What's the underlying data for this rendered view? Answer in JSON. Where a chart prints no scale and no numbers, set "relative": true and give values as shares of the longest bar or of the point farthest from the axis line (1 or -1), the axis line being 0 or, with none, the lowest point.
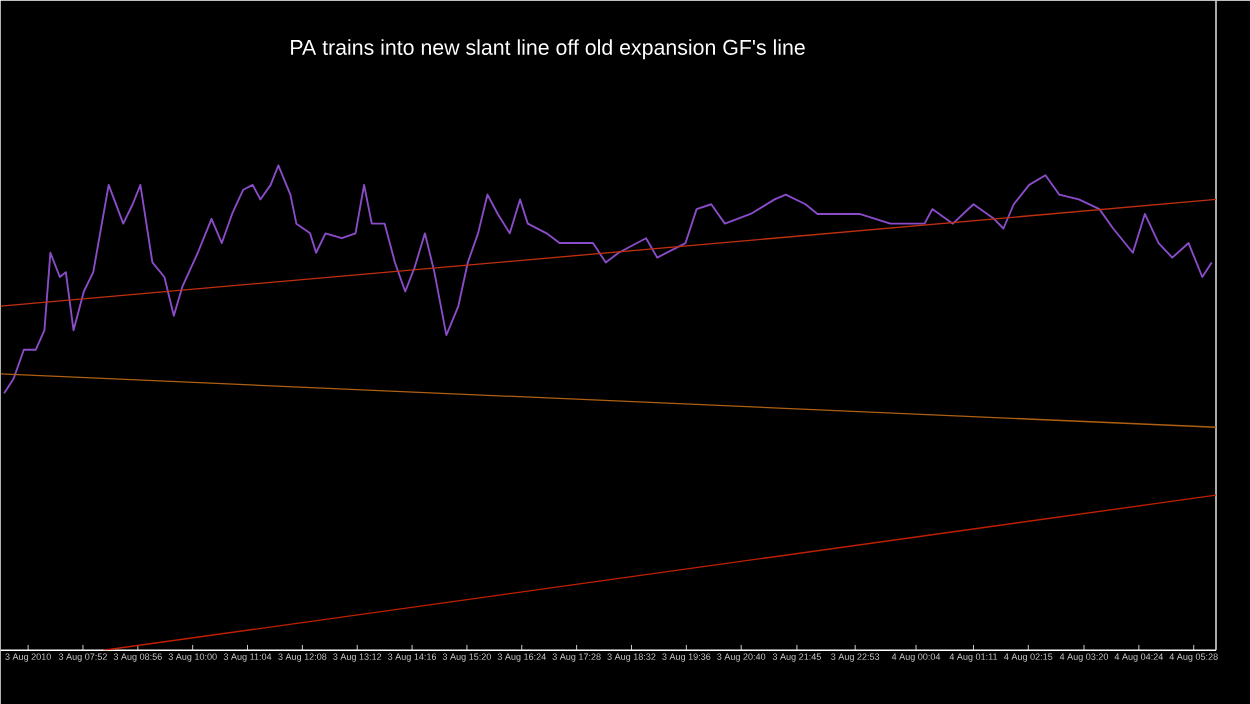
{
  "chart_data": {
    "type": "line",
    "title": "PA trains into new slant line off old expansion GF's line",
    "relative": true,
    "xlim": [
      "2010-08-03T06:16",
      "2010-08-04T05:54"
    ],
    "xticks": [
      {
        "value": "2010-08-03T06:48",
        "label": "3 Aug 2010"
      },
      {
        "value": "2010-08-03T07:52",
        "label": "3 Aug 07:52"
      },
      {
        "value": "2010-08-03T08:56",
        "label": "3 Aug 08:56"
      },
      {
        "value": "2010-08-03T10:00",
        "label": "3 Aug 10:00"
      },
      {
        "value": "2010-08-03T11:04",
        "label": "3 Aug 11:04"
      },
      {
        "value": "2010-08-03T12:08",
        "label": "3 Aug 12:08"
      },
      {
        "value": "2010-08-03T13:12",
        "label": "3 Aug 13:12"
      },
      {
        "value": "2010-08-03T14:16",
        "label": "3 Aug 14:16"
      },
      {
        "value": "2010-08-03T15:20",
        "label": "3 Aug 15:20"
      },
      {
        "value": "2010-08-03T16:24",
        "label": "3 Aug 16:24"
      },
      {
        "value": "2010-08-03T17:28",
        "label": "3 Aug 17:28"
      },
      {
        "value": "2010-08-03T18:32",
        "label": "3 Aug 18:32"
      },
      {
        "value": "2010-08-03T19:36",
        "label": "3 Aug 19:36"
      },
      {
        "value": "2010-08-03T20:40",
        "label": "3 Aug 20:40"
      },
      {
        "value": "2010-08-03T21:45",
        "label": "3 Aug 21:45"
      },
      {
        "value": "2010-08-03T22:53",
        "label": "3 Aug 22:53"
      },
      {
        "value": "2010-08-04T00:04",
        "label": "4 Aug 00:04"
      },
      {
        "value": "2010-08-04T01:11",
        "label": "4 Aug 01:11"
      },
      {
        "value": "2010-08-04T02:15",
        "label": "4 Aug 02:15"
      },
      {
        "value": "2010-08-04T03:20",
        "label": "4 Aug 03:20"
      },
      {
        "value": "2010-08-04T04:24",
        "label": "4 Aug 04:24"
      },
      {
        "value": "2010-08-04T05:28",
        "label": "4 Aug 05:28"
      }
    ],
    "series": [
      {
        "color": "#8a4cc8",
        "x": [
          "2010-08-03T06:20",
          "2010-08-03T06:31",
          "2010-08-03T06:43",
          "2010-08-03T06:57",
          "2010-08-03T07:07",
          "2010-08-03T07:14",
          "2010-08-03T07:25",
          "2010-08-03T07:32",
          "2010-08-03T07:41",
          "2010-08-03T07:53",
          "2010-08-03T08:04",
          "2010-08-03T08:22",
          "2010-08-03T08:39",
          "2010-08-03T08:50",
          "2010-08-03T08:59",
          "2010-08-03T09:13",
          "2010-08-03T09:27",
          "2010-08-03T09:38",
          "2010-08-03T09:48",
          "2010-08-03T10:06",
          "2010-08-03T10:22",
          "2010-08-03T10:34",
          "2010-08-03T10:46",
          "2010-08-03T10:59",
          "2010-08-03T11:10",
          "2010-08-03T11:19",
          "2010-08-03T11:31",
          "2010-08-03T11:40",
          "2010-08-03T11:54",
          "2010-08-03T12:01",
          "2010-08-03T12:17",
          "2010-08-03T12:24",
          "2010-08-03T12:35",
          "2010-08-03T12:54",
          "2010-08-03T13:10",
          "2010-08-03T13:20",
          "2010-08-03T13:29",
          "2010-08-03T13:44",
          "2010-08-03T13:56",
          "2010-08-03T14:08",
          "2010-08-03T14:19",
          "2010-08-03T14:31",
          "2010-08-03T14:42",
          "2010-08-03T14:56",
          "2010-08-03T15:10",
          "2010-08-03T15:21",
          "2010-08-03T15:33",
          "2010-08-03T15:44",
          "2010-08-03T15:56",
          "2010-08-03T16:10",
          "2010-08-03T16:22",
          "2010-08-03T16:31",
          "2010-08-03T16:53",
          "2010-08-03T17:08",
          "2010-08-03T17:31",
          "2010-08-03T17:47",
          "2010-08-03T18:02",
          "2010-08-03T18:17",
          "2010-08-03T18:49",
          "2010-08-03T19:02",
          "2010-08-03T19:35",
          "2010-08-03T19:48",
          "2010-08-03T20:05",
          "2010-08-03T20:21",
          "2010-08-03T20:51",
          "2010-08-03T21:19",
          "2010-08-03T21:32",
          "2010-08-03T21:55",
          "2010-08-03T22:09",
          "2010-08-03T22:58",
          "2010-08-03T23:34",
          "2010-08-04T00:14",
          "2010-08-04T00:23",
          "2010-08-04T00:47",
          "2010-08-04T01:11",
          "2010-08-04T01:35",
          "2010-08-04T01:46",
          "2010-08-04T01:58",
          "2010-08-04T02:16",
          "2010-08-04T02:35",
          "2010-08-04T02:51",
          "2010-08-04T03:14",
          "2010-08-04T03:38",
          "2010-08-04T03:54",
          "2010-08-04T04:17",
          "2010-08-04T04:31",
          "2010-08-04T04:47",
          "2010-08-04T05:03",
          "2010-08-04T05:22",
          "2010-08-04T05:38",
          "2010-08-04T05:49"
        ],
        "values": [
          0.53,
          0.56,
          0.62,
          0.62,
          0.66,
          0.82,
          0.77,
          0.78,
          0.66,
          0.74,
          0.78,
          0.96,
          0.88,
          0.92,
          0.96,
          0.8,
          0.77,
          0.69,
          0.75,
          0.82,
          0.89,
          0.84,
          0.9,
          0.95,
          0.96,
          0.93,
          0.96,
          1.0,
          0.94,
          0.88,
          0.86,
          0.82,
          0.86,
          0.85,
          0.86,
          0.96,
          0.88,
          0.88,
          0.8,
          0.74,
          0.79,
          0.86,
          0.78,
          0.65,
          0.71,
          0.8,
          0.86,
          0.94,
          0.9,
          0.86,
          0.93,
          0.88,
          0.86,
          0.84,
          0.84,
          0.84,
          0.8,
          0.82,
          0.85,
          0.81,
          0.84,
          0.91,
          0.92,
          0.88,
          0.9,
          0.93,
          0.94,
          0.92,
          0.9,
          0.9,
          0.88,
          0.88,
          0.91,
          0.88,
          0.92,
          0.89,
          0.87,
          0.92,
          0.96,
          0.98,
          0.94,
          0.93,
          0.91,
          0.87,
          0.82,
          0.9,
          0.84,
          0.81,
          0.84,
          0.77,
          0.8
        ]
      },
      {
        "color": "#c03010",
        "x": [
          "2010-08-03T06:16",
          "2010-08-04T05:54"
        ],
        "values": [
          0.71,
          0.93
        ]
      },
      {
        "color": "#b06010",
        "x": [
          "2010-08-03T06:16",
          "2010-08-04T05:54"
        ],
        "values": [
          0.57,
          0.46
        ]
      },
      {
        "color": "#c02000",
        "x": [
          "2010-08-03T08:16",
          "2010-08-04T05:54"
        ],
        "values": [
          0,
          0.32
        ]
      }
    ]
  }
}
